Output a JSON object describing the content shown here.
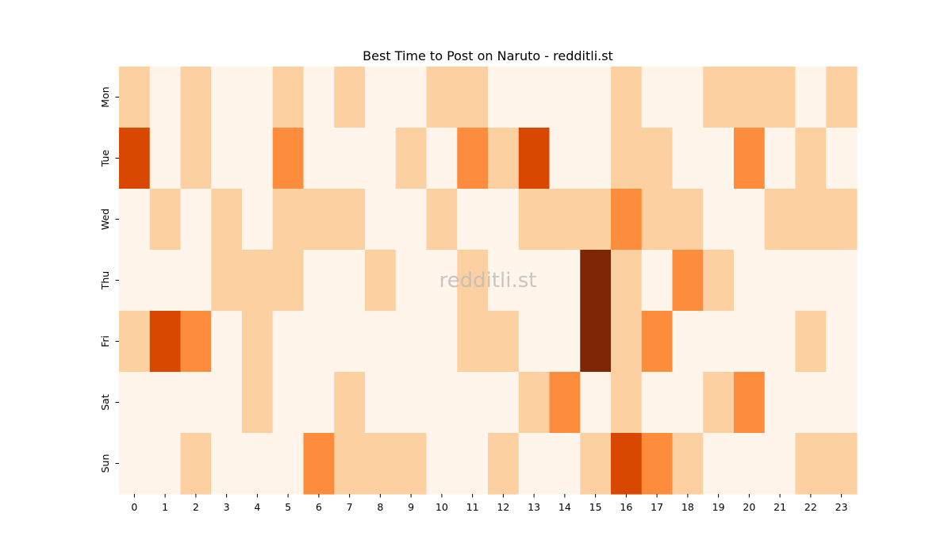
{
  "chart_data": {
    "type": "heatmap",
    "title": "Best Time to Post on Naruto - redditli.st",
    "watermark": "redditli.st",
    "xlabel": "",
    "ylabel": "",
    "x": [
      "0",
      "1",
      "2",
      "3",
      "4",
      "5",
      "6",
      "7",
      "8",
      "9",
      "10",
      "11",
      "12",
      "13",
      "14",
      "15",
      "16",
      "17",
      "18",
      "19",
      "20",
      "21",
      "22",
      "23"
    ],
    "y": [
      "Mon",
      "Tue",
      "Wed",
      "Thu",
      "Fri",
      "Sat",
      "Sun"
    ],
    "colorscale": "Oranges",
    "levels": 5,
    "values": [
      [
        1,
        0,
        1,
        0,
        0,
        1,
        0,
        1,
        0,
        0,
        1,
        1,
        0,
        0,
        0,
        0,
        1,
        0,
        0,
        1,
        1,
        1,
        0,
        1
      ],
      [
        3,
        0,
        1,
        0,
        0,
        2,
        0,
        0,
        0,
        1,
        0,
        2,
        1,
        3,
        0,
        0,
        1,
        1,
        0,
        0,
        2,
        0,
        1,
        0
      ],
      [
        0,
        1,
        0,
        1,
        0,
        1,
        1,
        1,
        0,
        0,
        1,
        0,
        0,
        1,
        1,
        1,
        2,
        1,
        1,
        0,
        0,
        1,
        1,
        1
      ],
      [
        0,
        0,
        0,
        1,
        1,
        1,
        0,
        0,
        1,
        0,
        0,
        1,
        0,
        0,
        0,
        4,
        1,
        0,
        2,
        1,
        0,
        0,
        0,
        0
      ],
      [
        1,
        3,
        2,
        0,
        1,
        0,
        0,
        0,
        0,
        0,
        0,
        1,
        1,
        0,
        0,
        4,
        1,
        2,
        0,
        0,
        0,
        0,
        1,
        0
      ],
      [
        0,
        0,
        0,
        0,
        1,
        0,
        0,
        1,
        0,
        0,
        0,
        0,
        0,
        1,
        2,
        0,
        1,
        0,
        0,
        1,
        2,
        0,
        0,
        0
      ],
      [
        0,
        0,
        1,
        0,
        0,
        0,
        2,
        1,
        1,
        1,
        0,
        0,
        1,
        0,
        0,
        1,
        3,
        2,
        1,
        0,
        0,
        0,
        1,
        1
      ]
    ],
    "level_colors": [
      "#fff5eb",
      "#fdd0a2",
      "#fd8d3c",
      "#d94801",
      "#7f2704"
    ],
    "grid": false,
    "colorbar": false
  }
}
